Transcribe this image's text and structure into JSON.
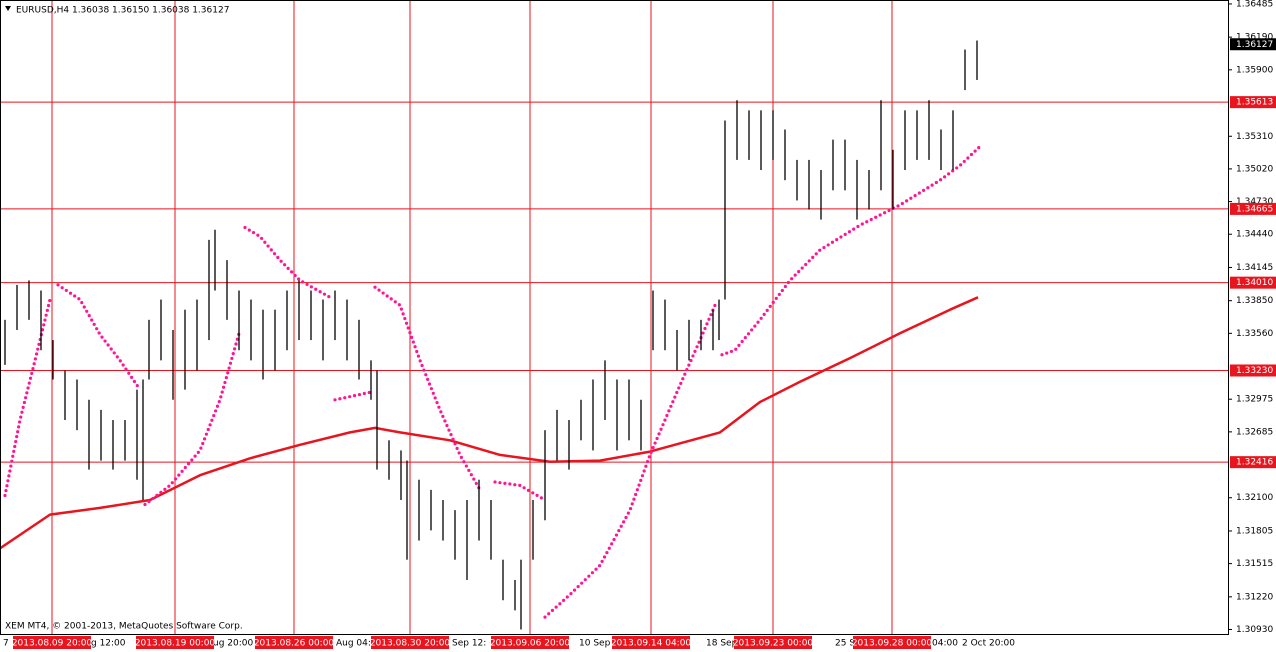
{
  "chart_data": {
    "type": "ohlc",
    "header": "EURUSD,H4  1.36038 1.36150 1.36038 1.36127",
    "copyright": "XEM MT4, © 2001-2013, MetaQuotes Software Corp.",
    "xlim": [
      0,
      307
    ],
    "ylim": [
      1.3089,
      1.3652
    ],
    "yticks": [
      1.36485,
      {
        "value": 1.3619,
        "label": "1.36190"
      },
      {
        "value": 1.359,
        "label": "1.35900"
      },
      {
        "value": 1.3531,
        "label": "1.35310"
      },
      {
        "value": 1.3502,
        "label": "1.35020"
      },
      {
        "value": 1.3473,
        "label": "1.34730"
      },
      {
        "value": 1.3444,
        "label": "1.34440"
      },
      1.34145,
      {
        "value": 1.3385,
        "label": "1.33850"
      },
      {
        "value": 1.3356,
        "label": "1.33560"
      },
      1.32975,
      1.32685,
      {
        "value": 1.321,
        "label": "1.32100"
      },
      1.31805,
      1.31515,
      {
        "value": 1.3122,
        "label": "1.31220"
      },
      {
        "value": 1.3093,
        "label": "1.30930"
      }
    ],
    "color": "#000000",
    "bars": {
      "x": [
        1.25,
        4.25,
        7.25,
        10.25,
        13.25,
        16.25,
        19.25,
        22.25,
        25.25,
        28.25,
        31.25,
        34.25,
        35.75,
        37.25,
        40.25,
        43.25,
        46.25,
        49.25,
        52.25,
        53.75,
        56.75,
        59.75,
        62.75,
        65.75,
        68.75,
        71.75,
        74.75,
        77.75,
        80.75,
        83.75,
        86.75,
        89.75,
        92.75,
        94.25,
        97.25,
        100.25,
        101.75,
        104.75,
        107.75,
        110.75,
        113.75,
        116.75,
        119.75,
        122.75,
        125.75,
        128.75,
        130.25,
        133.25,
        136.25,
        139.25,
        142.25,
        145.25,
        148.25,
        151.25,
        154.25,
        157.25,
        160.25,
        163.25,
        166.25,
        169.25,
        172.25,
        175.25,
        178.25,
        179.75,
        181.25,
        184.25,
        187.25,
        190.25,
        193.25,
        196.25,
        199.25,
        202.25,
        205.25,
        208.25,
        211.25,
        214.25,
        217.25,
        220.25,
        223.25,
        226.25,
        229.25,
        232.25,
        235.25,
        238.25,
        241.25,
        244.25
      ],
      "high": [
        1.3368,
        1.3399,
        1.3403,
        1.3394,
        1.335,
        1.3323,
        1.3315,
        1.3297,
        1.3288,
        1.3279,
        1.3279,
        1.3306,
        1.3315,
        1.3368,
        1.3386,
        1.3359,
        1.3377,
        1.3386,
        1.3439,
        1.3448,
        1.3421,
        1.3394,
        1.3386,
        1.3377,
        1.3377,
        1.3394,
        1.3403,
        1.3394,
        1.3386,
        1.3394,
        1.3386,
        1.3368,
        1.3332,
        1.3323,
        1.3261,
        1.3252,
        1.3243,
        1.3226,
        1.3217,
        1.3208,
        1.3199,
        1.3208,
        1.3226,
        1.3208,
        1.3155,
        1.3137,
        1.3155,
        1.3208,
        1.327,
        1.3288,
        1.3279,
        1.3297,
        1.3315,
        1.3332,
        1.3315,
        1.3315,
        1.3297,
        1.3394,
        1.3386,
        1.3359,
        1.3368,
        1.3368,
        1.3377,
        1.3386,
        1.3545,
        1.3563,
        1.3554,
        1.3554,
        1.3554,
        1.3537,
        1.351,
        1.351,
        1.3501,
        1.3528,
        1.3528,
        1.351,
        1.3501,
        1.3563,
        1.3519,
        1.3554,
        1.3554,
        1.3563,
        1.3537,
        1.3554,
        1.3608,
        1.3616
      ],
      "low": [
        1.3328,
        1.3359,
        1.3368,
        1.3341,
        1.3315,
        1.3279,
        1.327,
        1.3235,
        1.3243,
        1.3235,
        1.3243,
        1.3226,
        1.3208,
        1.3315,
        1.3332,
        1.3297,
        1.3306,
        1.3323,
        1.335,
        1.3394,
        1.3368,
        1.3341,
        1.3332,
        1.3315,
        1.3323,
        1.3341,
        1.335,
        1.335,
        1.3332,
        1.335,
        1.3332,
        1.3315,
        1.3297,
        1.3235,
        1.3226,
        1.3208,
        1.3155,
        1.3172,
        1.3181,
        1.3172,
        1.3155,
        1.3137,
        1.3172,
        1.3155,
        1.3119,
        1.311,
        1.3093,
        1.3155,
        1.319,
        1.3243,
        1.3235,
        1.3261,
        1.3252,
        1.3279,
        1.3252,
        1.3261,
        1.3252,
        1.3341,
        1.3341,
        1.3323,
        1.3332,
        1.3341,
        1.3341,
        1.335,
        1.3386,
        1.351,
        1.351,
        1.3501,
        1.351,
        1.3492,
        1.3474,
        1.3466,
        1.3457,
        1.3483,
        1.3483,
        1.3457,
        1.3466,
        1.3483,
        1.3466,
        1.3501,
        1.351,
        1.351,
        1.3501,
        1.3501,
        1.3572,
        1.3581
      ]
    },
    "indicators": [
      {
        "style": "line",
        "color": "#e8141e",
        "x": [
          0,
          12.5,
          25,
          37.5,
          50,
          62.5,
          75,
          87.5,
          93.75,
          100,
          112.5,
          125,
          137.5,
          150,
          162.5,
          180,
          190,
          200,
          212.5,
          225,
          237.5,
          244.5
        ],
        "values": [
          1.3165,
          1.3195,
          1.3201,
          1.3208,
          1.323,
          1.3245,
          1.3257,
          1.3268,
          1.3272,
          1.3268,
          1.3261,
          1.3248,
          1.3242,
          1.3243,
          1.3251,
          1.3268,
          1.3295,
          1.3313,
          1.3334,
          1.3356,
          1.3377,
          1.3388
        ]
      },
      {
        "style": "dots",
        "color": "#ff1493",
        "x": [
          1.25,
          5,
          8.75,
          12.5,
          null,
          14.5,
          20,
          25,
          30,
          35,
          null,
          36.25,
          42.5,
          50,
          55,
          60,
          null,
          61.25,
          65,
          70,
          75,
          82.5,
          null,
          83.75,
          93,
          null,
          93.75,
          100,
          105,
          110,
          115,
          120,
          null,
          123.75,
          130,
          136.25,
          null,
          136.25,
          142.5,
          150,
          157.5,
          162.5,
          170,
          175,
          178.75,
          null,
          180.5,
          183.75,
          190,
          197.5,
          205,
          215,
          225,
          235,
          240,
          245
        ],
        "values": [
          1.3212,
          1.3279,
          1.3332,
          1.3386,
          null,
          1.3399,
          1.3386,
          1.3355,
          1.3332,
          1.3306,
          null,
          1.3204,
          1.3221,
          1.3252,
          1.3297,
          1.3359,
          null,
          1.345,
          1.3442,
          1.3421,
          1.3403,
          1.3388,
          null,
          1.3297,
          1.3304,
          null,
          1.3397,
          1.3381,
          1.3332,
          1.3288,
          1.3248,
          1.3217,
          null,
          1.3224,
          1.3221,
          1.3208,
          null,
          1.3104,
          1.3124,
          1.315,
          1.3199,
          1.3248,
          1.331,
          1.335,
          1.3381,
          null,
          1.3337,
          1.3341,
          1.3368,
          1.3403,
          1.343,
          1.3452,
          1.347,
          1.3492,
          1.3505,
          1.3522
        ]
      }
    ],
    "hlines": [
      1.35613,
      1.34665,
      1.3401,
      1.3323,
      1.32416
    ],
    "hline_labels": [
      "1.35613",
      "1.34665",
      "1.34010",
      "1.33230",
      "1.32416"
    ],
    "hline_color": "#e8141e",
    "current_price": 1.36127,
    "vlines": [
      {
        "x": 13,
        "label": "2013.08.09 20:00"
      },
      {
        "x": 43.75,
        "label": "2013.08.19 00:00"
      },
      {
        "x": 73.5,
        "label": "2013.08.26 00:00"
      },
      {
        "x": 102.5,
        "label": "2013.08.30 20:00"
      },
      {
        "x": 132.5,
        "label": "2013.09.06 20:00"
      },
      {
        "x": 162.75,
        "label": "2013.09.14 04:00"
      },
      {
        "x": 193.25,
        "label": "2013.09.23 00:00"
      },
      {
        "x": 223,
        "label": "2013.09.28 00:00"
      }
    ],
    "time_labels": [
      {
        "x": 0.75,
        "label": "7"
      },
      {
        "x": 22.75,
        "label": "g 12:00"
      },
      {
        "x": 53.25,
        "label": "ug 20:00"
      },
      {
        "x": 84,
        "label": "Aug 04:00"
      },
      {
        "x": 113,
        "label": "Sep 12:"
      },
      {
        "x": 144.75,
        "label": "10 Sep"
      },
      {
        "x": 176.5,
        "label": "18 Sep"
      },
      {
        "x": 208.75,
        "label": "25 Sep"
      },
      {
        "x": 233,
        "label": "04:00"
      },
      {
        "x": 240.5,
        "label": "2 Oct 20:00"
      }
    ]
  }
}
